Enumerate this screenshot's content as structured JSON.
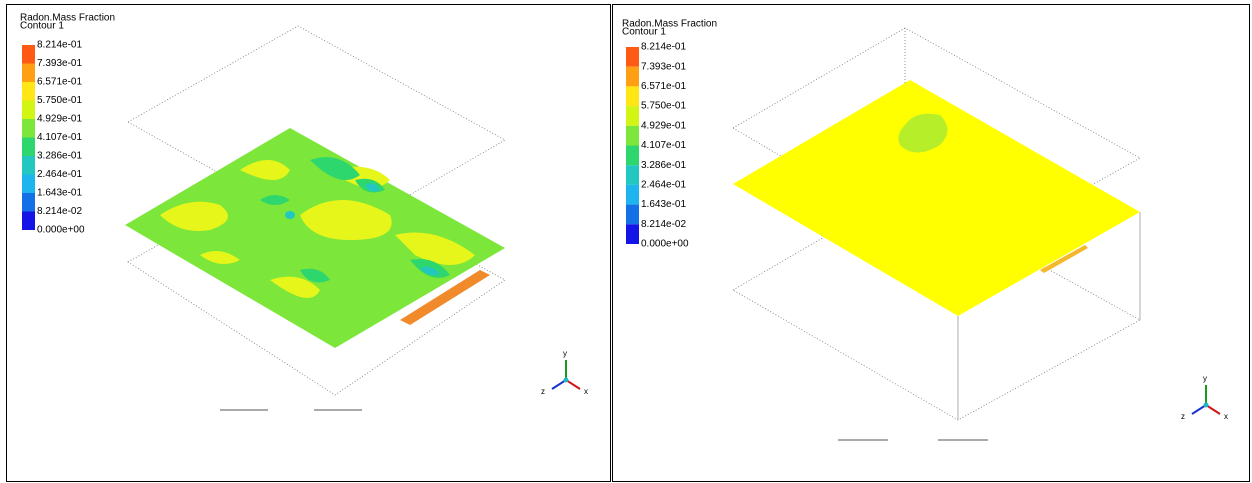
{
  "panels": [
    {
      "title": "Radon.Mass Fraction",
      "subtitle": "Contour 1",
      "legend": [
        "8.214e-01",
        "7.393e-01",
        "6.571e-01",
        "5.750e-01",
        "4.929e-01",
        "4.107e-01",
        "3.286e-01",
        "2.464e-01",
        "1.643e-01",
        "8.214e-02",
        "0.000e+00"
      ],
      "axes": {
        "x": "x",
        "y": "y",
        "z": "z"
      }
    },
    {
      "title": "Radon.Mass Fraction",
      "subtitle": "Contour 1",
      "legend": [
        "8.214e-01",
        "7.393e-01",
        "6.571e-01",
        "5.750e-01",
        "4.929e-01",
        "4.107e-01",
        "3.286e-01",
        "2.464e-01",
        "1.643e-01",
        "8.214e-02",
        "0.000e+00"
      ],
      "axes": {
        "x": "x",
        "y": "y",
        "z": "z"
      }
    }
  ]
}
